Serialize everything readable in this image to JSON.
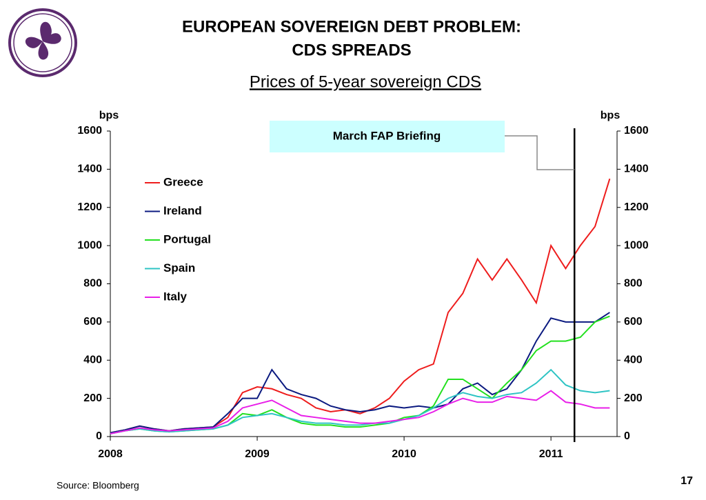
{
  "header": {
    "title_lines": [
      "EUROPEAN SOVEREIGN DEBT PROBLEM:",
      "CDS SPREADS"
    ],
    "page_number": "17"
  },
  "chart_data": {
    "type": "line",
    "title": "Prices of 5-year sovereign CDS",
    "y_label": "bps",
    "y2_label": "bps",
    "x": [
      2008.0,
      2008.1,
      2008.2,
      2008.3,
      2008.4,
      2008.5,
      2008.6,
      2008.7,
      2008.8,
      2008.9,
      2009.0,
      2009.1,
      2009.2,
      2009.3,
      2009.4,
      2009.5,
      2009.6,
      2009.7,
      2009.8,
      2009.9,
      2010.0,
      2010.1,
      2010.2,
      2010.3,
      2010.4,
      2010.5,
      2010.6,
      2010.7,
      2010.8,
      2010.9,
      2011.0,
      2011.1,
      2011.2,
      2011.3,
      2011.4
    ],
    "series": [
      {
        "name": "Greece",
        "color": "#ee1c1c",
        "values": [
          20,
          35,
          55,
          40,
          30,
          40,
          45,
          50,
          100,
          230,
          260,
          250,
          220,
          200,
          150,
          130,
          140,
          120,
          150,
          200,
          290,
          350,
          380,
          650,
          750,
          930,
          820,
          930,
          820,
          700,
          1000,
          880,
          1000,
          1100,
          1350
        ]
      },
      {
        "name": "Ireland",
        "color": "#0b1a80",
        "values": [
          20,
          35,
          55,
          40,
          30,
          40,
          45,
          50,
          120,
          200,
          200,
          350,
          250,
          220,
          200,
          160,
          140,
          130,
          140,
          160,
          150,
          160,
          150,
          170,
          250,
          280,
          220,
          250,
          350,
          500,
          620,
          600,
          600,
          600,
          650
        ]
      },
      {
        "name": "Portugal",
        "color": "#22e01e",
        "values": [
          15,
          30,
          40,
          30,
          25,
          30,
          35,
          40,
          60,
          120,
          110,
          140,
          100,
          70,
          60,
          60,
          50,
          50,
          60,
          70,
          100,
          110,
          160,
          300,
          300,
          250,
          200,
          280,
          350,
          450,
          500,
          500,
          520,
          600,
          630
        ]
      },
      {
        "name": "Spain",
        "color": "#2ec4c4",
        "values": [
          15,
          30,
          40,
          30,
          25,
          30,
          35,
          40,
          60,
          100,
          110,
          120,
          100,
          80,
          70,
          70,
          60,
          60,
          70,
          70,
          90,
          110,
          150,
          200,
          230,
          210,
          200,
          220,
          230,
          280,
          350,
          270,
          240,
          230,
          240
        ]
      },
      {
        "name": "Italy",
        "color": "#e81ee8",
        "values": [
          15,
          30,
          45,
          35,
          30,
          35,
          40,
          45,
          80,
          150,
          170,
          190,
          150,
          110,
          100,
          90,
          80,
          70,
          70,
          80,
          90,
          100,
          130,
          170,
          200,
          180,
          180,
          210,
          200,
          190,
          240,
          180,
          170,
          150,
          150
        ]
      }
    ],
    "xlim": [
      2008,
      2011.45
    ],
    "xticks": [
      2008,
      2009,
      2010,
      2011
    ],
    "ylim": [
      0,
      1600
    ],
    "yticks": [
      0,
      200,
      400,
      600,
      800,
      1000,
      1200,
      1400,
      1600
    ],
    "y2lim": [
      0,
      1600
    ],
    "y2ticks": [
      0,
      200,
      400,
      600,
      800,
      1000,
      1200,
      1400,
      1600
    ],
    "annotation": {
      "text": "March FAP Briefing",
      "x": 2011.16
    },
    "source": "Source: Bloomberg"
  }
}
